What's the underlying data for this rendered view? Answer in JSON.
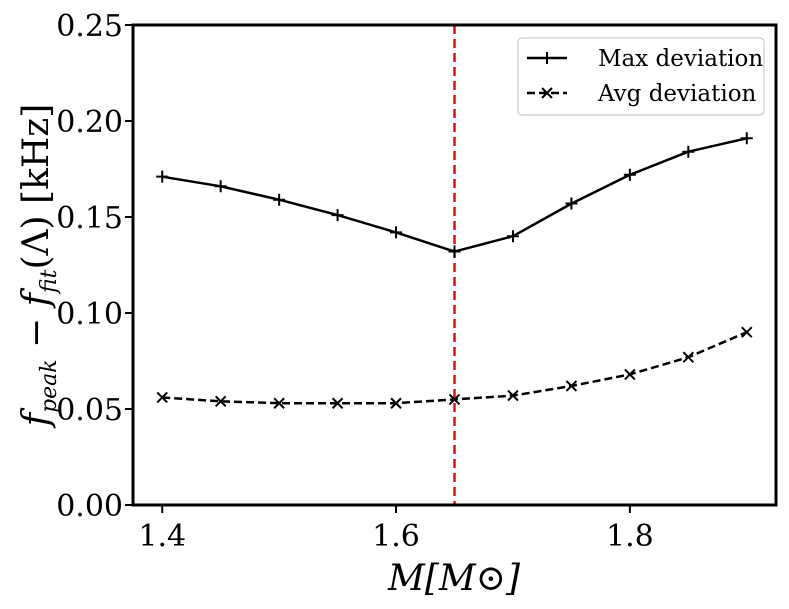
{
  "chart_data": {
    "type": "line",
    "xlabel": "M[M⊙]",
    "ylabel": "f_peak − f_fit(Λ) [kHz]",
    "xlim": [
      1.375,
      1.925
    ],
    "ylim": [
      0.0,
      0.25
    ],
    "x_ticks": [
      1.4,
      1.6,
      1.8
    ],
    "x_tick_labels": [
      "1.4",
      "1.6",
      "1.8"
    ],
    "y_ticks": [
      0.0,
      0.05,
      0.1,
      0.15,
      0.2,
      0.25
    ],
    "y_tick_labels": [
      "0.00",
      "0.05",
      "0.10",
      "0.15",
      "0.20",
      "0.25"
    ],
    "grid": false,
    "legend_position": "top-right",
    "x": [
      1.4,
      1.45,
      1.5,
      1.55,
      1.6,
      1.65,
      1.7,
      1.75,
      1.8,
      1.85,
      1.9
    ],
    "series": [
      {
        "name": "Max deviation",
        "marker": "plus",
        "line": "solid",
        "color": "#000000",
        "values": [
          0.171,
          0.166,
          0.159,
          0.151,
          0.142,
          0.132,
          0.14,
          0.157,
          0.172,
          0.184,
          0.191
        ]
      },
      {
        "name": "Avg deviation",
        "marker": "x",
        "line": "dashed",
        "color": "#000000",
        "values": [
          0.056,
          0.054,
          0.053,
          0.053,
          0.053,
          0.055,
          0.057,
          0.062,
          0.068,
          0.077,
          0.09
        ]
      }
    ],
    "vline": {
      "x": 1.65,
      "color": "#dd1111",
      "style": "dashed"
    }
  }
}
